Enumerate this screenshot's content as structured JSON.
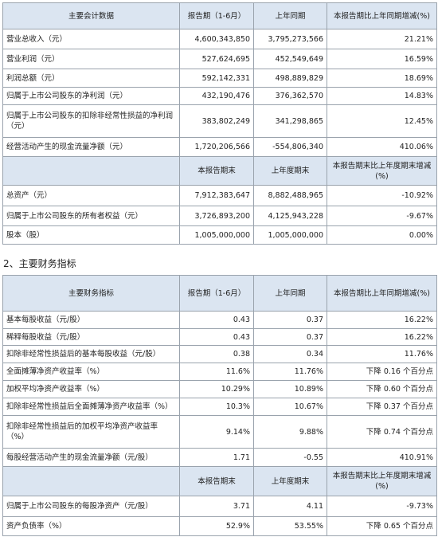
{
  "table1": {
    "header": [
      "主要会计数据",
      "报告期（1-6月）",
      "上年同期",
      "本报告期比上年同期增减(%)"
    ],
    "rows": [
      [
        "营业总收入（元）",
        "4,600,343,850",
        "3,795,273,566",
        "21.21%"
      ],
      [
        "营业利润（元）",
        "527,624,695",
        "452,549,649",
        "16.59%"
      ],
      [
        "利润总额（元）",
        "592,142,331",
        "498,889,829",
        "18.69%"
      ],
      [
        "归属于上市公司股东的净利润（元）",
        "432,190,476",
        "376,362,570",
        "14.83%"
      ],
      [
        "归属于上市公司股东的扣除非经常性损益的净利润（元）",
        "383,802,249",
        "341,298,865",
        "12.45%"
      ],
      [
        "经营活动产生的现金流量净额（元）",
        "1,720,206,566",
        "-554,806,340",
        "410.06%"
      ]
    ],
    "subheader": [
      "本报告期末",
      "上年度期末",
      "本报告期末比上年度期末增减(%)"
    ],
    "rows2": [
      [
        "总资产（元）",
        "7,912,383,647",
        "8,882,488,965",
        "-10.92%"
      ],
      [
        "归属于上市公司股东的所有者权益（元）",
        "3,726,893,200",
        "4,125,943,228",
        "-9.67%"
      ],
      [
        "股本（股）",
        "1,005,000,000",
        "1,005,000,000",
        "0.00%"
      ]
    ]
  },
  "section_title": "2、主要财务指标",
  "table2": {
    "header": [
      "主要财务指标",
      "报告期（1-6月）",
      "上年同期",
      "本报告期比上年同期增减(%)"
    ],
    "rows": [
      [
        "基本每股收益（元/股）",
        "0.43",
        "0.37",
        "16.22%"
      ],
      [
        "稀释每股收益（元/股）",
        "0.43",
        "0.37",
        "16.22%"
      ],
      [
        "扣除非经常性损益后的基本每股收益（元/股）",
        "0.38",
        "0.34",
        "11.76%"
      ],
      [
        "全面摊薄净资产收益率（%）",
        "11.6%",
        "11.76%",
        "下降 0.16 个百分点"
      ],
      [
        "加权平均净资产收益率（%）",
        "10.29%",
        "10.89%",
        "下降 0.60 个百分点"
      ],
      [
        "扣除非经常性损益后全面摊薄净资产收益率（%）",
        "10.3%",
        "10.67%",
        "下降 0.37 个百分点"
      ],
      [
        "扣除非经常性损益后的加权平均净资产收益率（%）",
        "9.14%",
        "9.88%",
        "下降 0.74 个百分点"
      ],
      [
        "每股经营活动产生的现金流量净额（元/股）",
        "1.71",
        "-0.55",
        "410.91%"
      ]
    ],
    "subheader": [
      "本报告期末",
      "上年度期末",
      "本报告期末比上年度期末增减(%)"
    ],
    "rows2": [
      [
        "归属于上市公司股东的每股净资产（元/股）",
        "3.71",
        "4.11",
        "-9.73%"
      ],
      [
        "资产负债率（%）",
        "52.9%",
        "53.55%",
        "下降 0.65 个百分点"
      ]
    ]
  }
}
